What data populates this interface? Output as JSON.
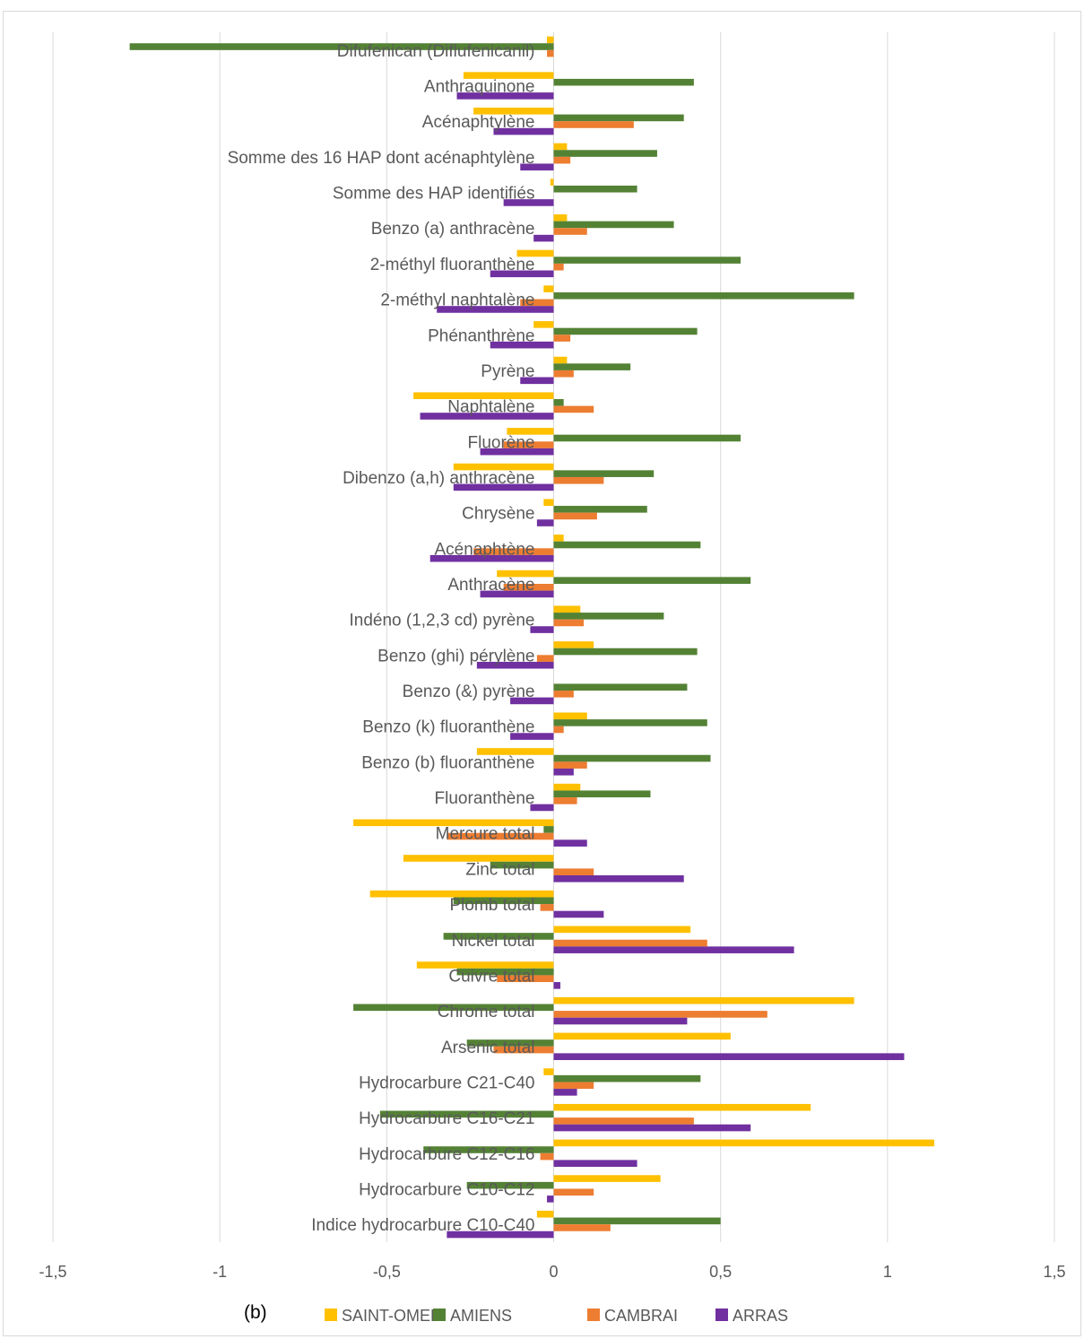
{
  "chart_data": {
    "type": "bar",
    "orientation": "horizontal",
    "panel_letter": "(b)",
    "categories": [
      "Difufenican (Diflufenicanil)",
      "Anthraquinone",
      "Acénaphtylène",
      "Somme des 16 HAP dont acénaphtylène",
      "Somme des HAP identifiés",
      "Benzo (a) anthracène",
      "2-méthyl fluoranthène",
      "2-méthyl naphtalène",
      "Phénanthrène",
      "Pyrène",
      "Naphtalène",
      "Fluorène",
      "Dibenzo (a,h) anthracène",
      "Chrysène",
      "Acénaphtène",
      "Anthracène",
      "Indéno (1,2,3 cd) pyrène",
      "Benzo (ghi) pérylène",
      "Benzo (&) pyrène",
      "Benzo (k) fluoranthène",
      "Benzo (b) fluoranthène",
      "Fluoranthène",
      "Mercure total",
      "Zinc total",
      "Plomb total",
      "Nickel total",
      "Cuivre total",
      "Chrome total",
      "Arsenic total",
      "Hydrocarbure C21-C40",
      "Hydrocarbure C16-C21",
      "Hydrocarbure C12-C16",
      "Hydrocarbure C10-C12",
      "Indice hydrocarbure C10-C40"
    ],
    "series": [
      {
        "name": "SAINT-OMER",
        "color": "#FFC000",
        "values": [
          -0.02,
          -0.27,
          -0.24,
          0.04,
          -0.01,
          0.04,
          -0.11,
          -0.03,
          -0.06,
          0.04,
          -0.42,
          -0.14,
          -0.3,
          -0.03,
          0.03,
          -0.17,
          0.08,
          0.12,
          0.0,
          0.1,
          -0.23,
          0.08,
          -0.6,
          -0.45,
          -0.55,
          0.41,
          -0.41,
          0.9,
          0.53,
          -0.03,
          0.77,
          1.14,
          0.32,
          -0.05
        ]
      },
      {
        "name": "AMIENS",
        "color": "#548235",
        "values": [
          -1.27,
          0.42,
          0.39,
          0.31,
          0.25,
          0.36,
          0.56,
          0.9,
          0.43,
          0.23,
          0.03,
          0.56,
          0.3,
          0.28,
          0.44,
          0.59,
          0.33,
          0.43,
          0.4,
          0.46,
          0.47,
          0.29,
          -0.03,
          -0.19,
          -0.3,
          -0.33,
          -0.29,
          -0.6,
          -0.26,
          0.44,
          -0.52,
          -0.39,
          -0.26,
          0.5
        ]
      },
      {
        "name": "CAMBRAI",
        "color": "#ED7D31",
        "values": [
          -0.02,
          0.0,
          0.24,
          0.05,
          0.0,
          0.1,
          0.03,
          -0.1,
          0.05,
          0.06,
          0.12,
          -0.15,
          0.15,
          0.13,
          -0.24,
          -0.15,
          0.09,
          -0.05,
          0.06,
          0.03,
          0.1,
          0.07,
          -0.32,
          0.12,
          -0.04,
          0.46,
          -0.17,
          0.64,
          -0.18,
          0.12,
          0.42,
          -0.04,
          0.12,
          0.17
        ]
      },
      {
        "name": "ARRAS",
        "color": "#7030A0",
        "values": [
          0.0,
          -0.29,
          -0.18,
          -0.1,
          -0.15,
          -0.06,
          -0.19,
          -0.35,
          -0.19,
          -0.1,
          -0.4,
          -0.22,
          -0.3,
          -0.05,
          -0.37,
          -0.22,
          -0.07,
          -0.23,
          -0.13,
          -0.13,
          0.06,
          -0.07,
          0.1,
          0.39,
          0.15,
          0.72,
          0.02,
          0.4,
          1.05,
          0.07,
          0.59,
          0.25,
          -0.02,
          -0.32
        ]
      }
    ],
    "xlim": [
      -1.5,
      1.5
    ],
    "xticks": [
      "-1,5",
      "-1",
      "-0,5",
      "0",
      "0,5",
      "1",
      "1,5"
    ],
    "xtick_values": [
      -1.5,
      -1,
      -0.5,
      0,
      0.5,
      1,
      1.5
    ],
    "grid": "vertical",
    "legend_position": "bottom",
    "title": "",
    "xlabel": "",
    "ylabel": ""
  }
}
